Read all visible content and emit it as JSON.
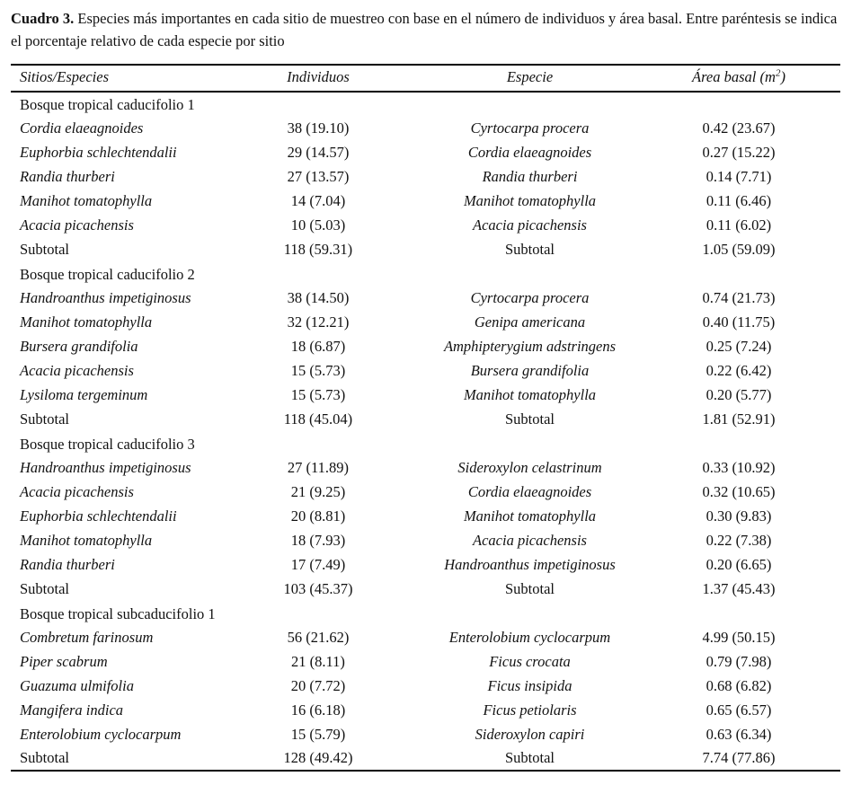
{
  "caption": {
    "label": "Cuadro 3.",
    "text": "Especies más importantes en cada sitio de muestreo con base en el número de individuos y área basal. Entre paréntesis se indica el porcentaje relativo de cada especie por sitio"
  },
  "table": {
    "headers": {
      "sites_species": "Sitios/Especies",
      "individuals": "Individuos",
      "species": "Especie",
      "basal_area_prefix": "Área basal (m",
      "basal_area_sup": "2",
      "basal_area_suffix": ")"
    },
    "sections": [
      {
        "title": "Bosque tropical caducifolio 1",
        "rows": [
          {
            "col1": "Cordia elaeagnoides",
            "col2": "38 (19.10)",
            "col3": "Cyrtocarpa procera",
            "col4": "0.42 (23.67)"
          },
          {
            "col1": "Euphorbia schlechtendalii",
            "col2": "29 (14.57)",
            "col3": "Cordia elaeagnoides",
            "col4": "0.27 (15.22)"
          },
          {
            "col1": "Randia thurberi",
            "col2": "27 (13.57)",
            "col3": "Randia thurberi",
            "col4": "0.14 (7.71)"
          },
          {
            "col1": "Manihot tomatophylla",
            "col2": "14 (7.04)",
            "col3": "Manihot tomatophylla",
            "col4": "0.11 (6.46)"
          },
          {
            "col1": "Acacia picachensis",
            "col2": "10 (5.03)",
            "col3": "Acacia picachensis",
            "col4": "0.11 (6.02)"
          }
        ],
        "subtotal": {
          "col1": "Subtotal",
          "col2": "118 (59.31)",
          "col3": "Subtotal",
          "col4": "1.05 (59.09)"
        }
      },
      {
        "title": "Bosque tropical caducifolio 2",
        "rows": [
          {
            "col1": "Handroanthus impetiginosus",
            "col2": "38 (14.50)",
            "col3": "Cyrtocarpa procera",
            "col4": "0.74 (21.73)"
          },
          {
            "col1": "Manihot tomatophylla",
            "col2": "32 (12.21)",
            "col3": "Genipa americana",
            "col4": "0.40 (11.75)"
          },
          {
            "col1": "Bursera grandifolia",
            "col2": "18 (6.87)",
            "col3": "Amphipterygium adstringens",
            "col4": "0.25 (7.24)"
          },
          {
            "col1": "Acacia picachensis",
            "col2": "15 (5.73)",
            "col3": "Bursera grandifolia",
            "col4": "0.22 (6.42)"
          },
          {
            "col1": "Lysiloma tergeminum",
            "col2": "15 (5.73)",
            "col3": "Manihot tomatophylla",
            "col4": "0.20 (5.77)"
          }
        ],
        "subtotal": {
          "col1": "Subtotal",
          "col2": "118 (45.04)",
          "col3": "Subtotal",
          "col4": "1.81 (52.91)"
        }
      },
      {
        "title": "Bosque tropical caducifolio 3",
        "rows": [
          {
            "col1": "Handroanthus impetiginosus",
            "col2": "27 (11.89)",
            "col3": "Sideroxylon celastrinum",
            "col4": "0.33 (10.92)"
          },
          {
            "col1": "Acacia picachensis",
            "col2": "21 (9.25)",
            "col3": "Cordia elaeagnoides",
            "col4": "0.32 (10.65)"
          },
          {
            "col1": "Euphorbia schlechtendalii",
            "col2": "20 (8.81)",
            "col3": "Manihot tomatophylla",
            "col4": "0.30 (9.83)"
          },
          {
            "col1": "Manihot tomatophylla",
            "col2": "18 (7.93)",
            "col3": "Acacia picachensis",
            "col4": "0.22 (7.38)"
          },
          {
            "col1": "Randia thurberi",
            "col2": "17 (7.49)",
            "col3": "Handroanthus impetiginosus",
            "col4": "0.20 (6.65)"
          }
        ],
        "subtotal": {
          "col1": "Subtotal",
          "col2": "103 (45.37)",
          "col3": "Subtotal",
          "col4": "1.37 (45.43)"
        }
      },
      {
        "title": "Bosque tropical subcaducifolio 1",
        "rows": [
          {
            "col1": "Combretum farinosum",
            "col2": "56 (21.62)",
            "col3": "Enterolobium cyclocarpum",
            "col4": "4.99 (50.15)"
          },
          {
            "col1": "Piper scabrum",
            "col2": "21 (8.11)",
            "col3": "Ficus crocata",
            "col4": "0.79 (7.98)"
          },
          {
            "col1": "Guazuma ulmifolia",
            "col2": "20 (7.72)",
            "col3": "Ficus insipida",
            "col4": "0.68 (6.82)"
          },
          {
            "col1": "Mangifera indica",
            "col2": "16 (6.18)",
            "col3": "Ficus petiolaris",
            "col4": "0.65 (6.57)"
          },
          {
            "col1": "Enterolobium cyclocarpum",
            "col2": "15 (5.79)",
            "col3": "Sideroxylon capiri",
            "col4": "0.63 (6.34)"
          }
        ],
        "subtotal": {
          "col1": "Subtotal",
          "col2": "128 (49.42)",
          "col3": "Subtotal",
          "col4": "7.74 (77.86)"
        }
      }
    ]
  }
}
